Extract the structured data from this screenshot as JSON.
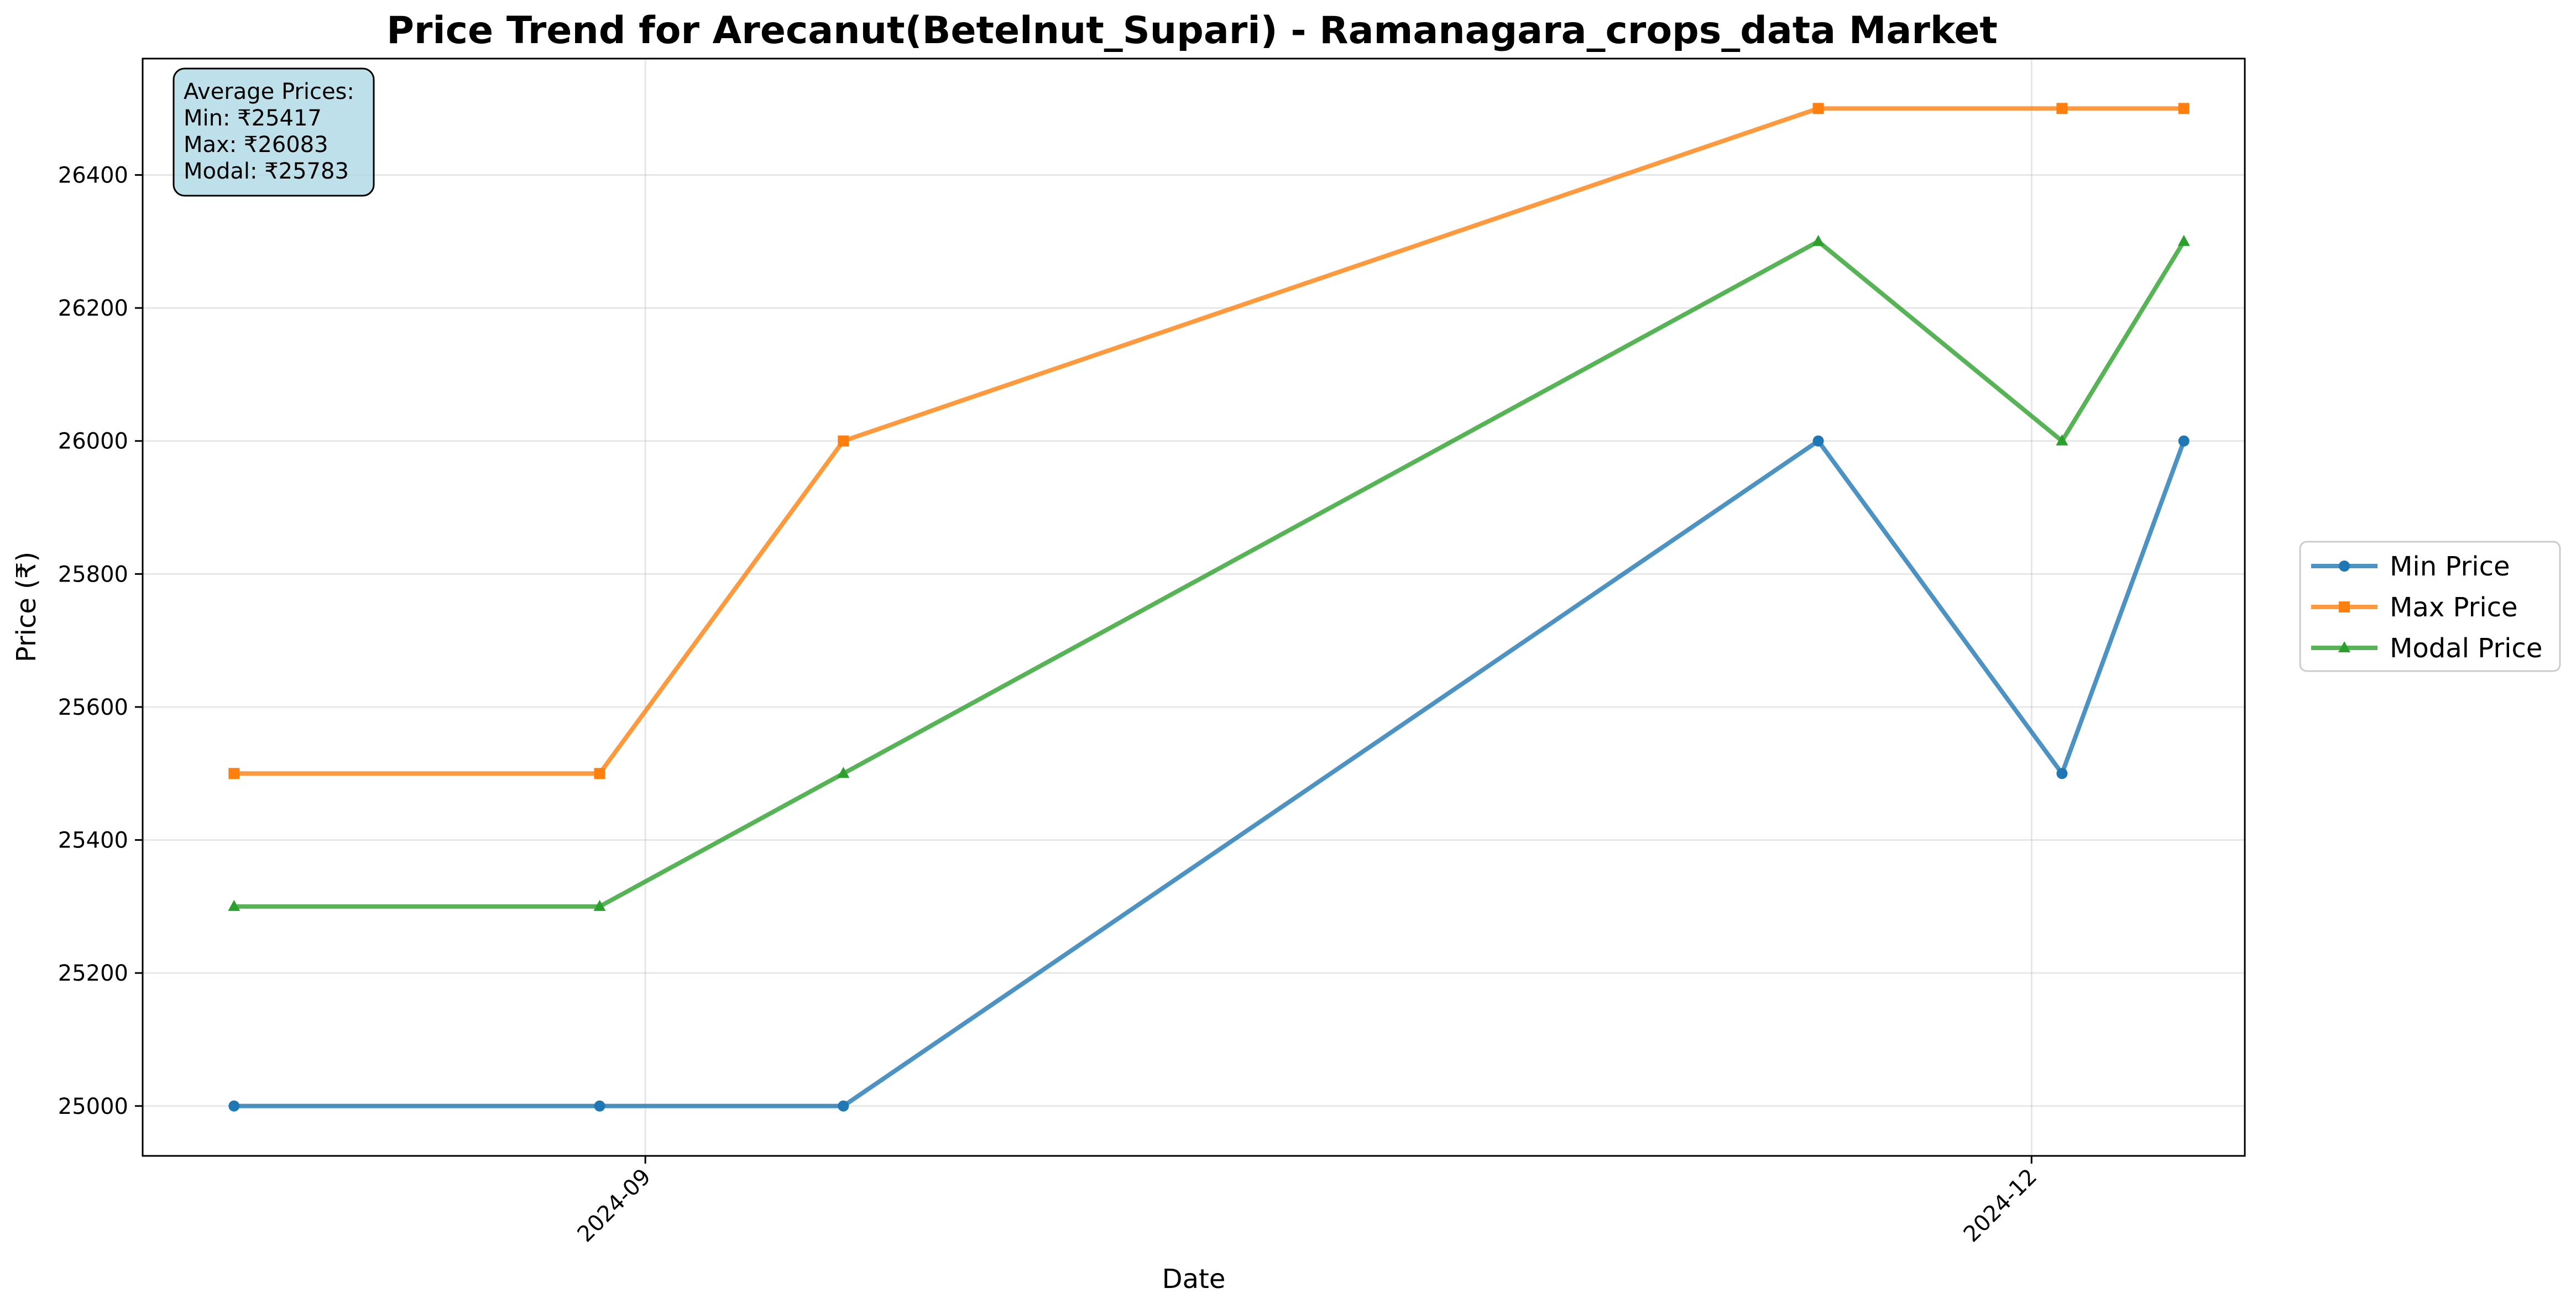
{
  "chart_data": {
    "type": "line",
    "title": "Price Trend for Arecanut(Betelnut_Supari) - Ramanagara_crops_data Market",
    "xlabel": "Date",
    "ylabel": "Price (₹)",
    "x": [
      "2024-08-05",
      "2024-08-29",
      "2024-09-14",
      "2024-11-17",
      "2024-12-03",
      "2024-12-11"
    ],
    "xlim": [
      "2024-07-30",
      "2024-12-15"
    ],
    "xticks": [
      {
        "value": "2024-09-01",
        "label": "2024-09"
      },
      {
        "value": "2024-12-01",
        "label": "2024-12"
      }
    ],
    "ylim": [
      24925,
      26575
    ],
    "yticks": [
      25000,
      25200,
      25400,
      25600,
      25800,
      26000,
      26200,
      26400
    ],
    "grid": true,
    "legend_position": "right",
    "series": [
      {
        "name": "Min Price",
        "color": "#1f77b4",
        "marker": "circle",
        "values": [
          25000,
          25000,
          25000,
          26000,
          25500,
          26000
        ]
      },
      {
        "name": "Max Price",
        "color": "#ff7f0e",
        "marker": "square",
        "values": [
          25500,
          25500,
          26000,
          26500,
          26500,
          26500
        ]
      },
      {
        "name": "Modal Price",
        "color": "#2ca02c",
        "marker": "triangle",
        "values": [
          25300,
          25300,
          25500,
          26300,
          26000,
          26300
        ]
      }
    ],
    "annotation": {
      "lines": [
        "Average Prices:",
        "Min: ₹25417",
        "Max: ₹26083",
        "Modal: ₹25783"
      ],
      "background": "#add8e6"
    }
  }
}
